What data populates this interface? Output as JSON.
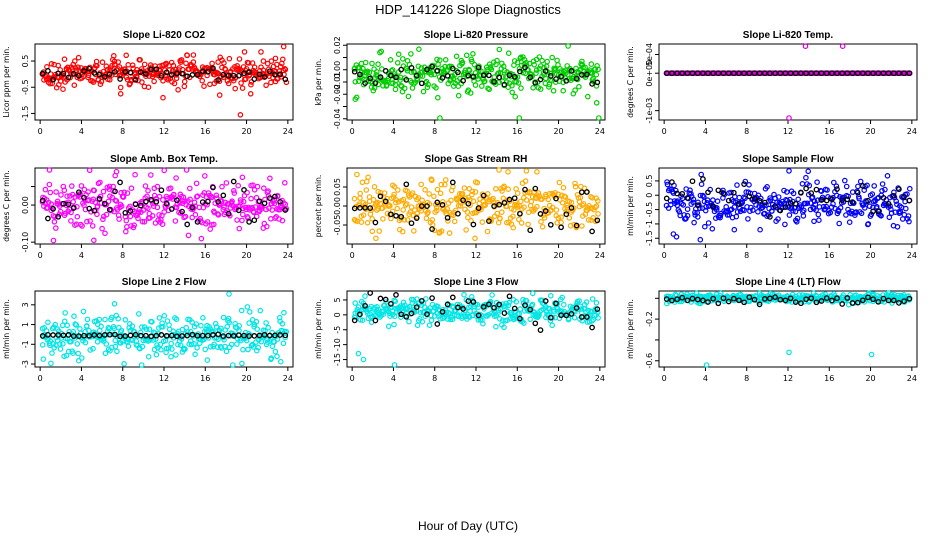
{
  "figure": {
    "title": "HDP_141226  Slope Diagnostics",
    "xlabel": "Hour of Day (UTC)"
  },
  "chart_data": [
    {
      "type": "scatter",
      "title": "Slope Li-820 CO2",
      "ylabel": "Licor ppm per min.",
      "color": "#ff0000",
      "yticks": [
        -1.5,
        -0.5,
        0.5
      ],
      "ytick_labels": [
        "-1.5",
        "-0.5",
        "0.5"
      ],
      "ylim": [
        -1.75,
        1.15
      ],
      "xlim": [
        -0.5,
        24.5
      ],
      "xticks": [
        0,
        4,
        8,
        12,
        16,
        20,
        24
      ],
      "center": 0.05,
      "spread": 0.25,
      "black_center": 0.02,
      "black_spread": 0.12,
      "outliers": [
        [
          7.8,
          -0.75
        ],
        [
          11.9,
          -0.9
        ],
        [
          17.4,
          -0.8
        ],
        [
          18.9,
          -0.55
        ],
        [
          19.4,
          -1.55
        ],
        [
          19.8,
          0.85
        ],
        [
          21.4,
          0.85
        ],
        [
          22.8,
          0.6
        ],
        [
          23.6,
          1.05
        ],
        [
          20.4,
          -0.75
        ]
      ]
    },
    {
      "type": "scatter",
      "title": "Slope Li-820 Pressure",
      "ylabel": "kPa per min.",
      "color": "#00cc00",
      "yticks": [
        -0.04,
        -0.03,
        -0.02,
        -0.01,
        0,
        0.01,
        0.02
      ],
      "ytick_labels": [
        "-0.04",
        "",
        "-0.02",
        "-0.01",
        "0.00",
        "",
        "0.02"
      ],
      "ylim": [
        -0.041,
        0.021
      ],
      "xlim": [
        -0.5,
        24.5
      ],
      "xticks": [
        0,
        4,
        8,
        12,
        16,
        20,
        24
      ],
      "center": -0.004,
      "spread": 0.007,
      "black_center": -0.005,
      "black_spread": 0.004,
      "outliers": [
        [
          0.3,
          -0.024
        ],
        [
          8.5,
          -0.04
        ],
        [
          11.7,
          0.013
        ],
        [
          15.8,
          -0.022
        ],
        [
          16.2,
          -0.04
        ],
        [
          23.9,
          -0.04
        ],
        [
          23.7,
          -0.027
        ]
      ]
    },
    {
      "type": "scatter",
      "title": "Slope Li-820 Temp.",
      "ylabel": "degrees C per min.",
      "color": "#dd00dd",
      "yticks": [
        -0.001,
        0,
        0.0005
      ],
      "ytick_labels": [
        "-1e-03",
        "0e+00",
        "5e-04"
      ],
      "ylim": [
        -0.00125,
        0.00078
      ],
      "xlim": [
        -0.5,
        24.5
      ],
      "xticks": [
        0,
        4,
        8,
        12,
        16,
        20,
        24
      ],
      "center": 0,
      "spread": 0,
      "black_center": 0,
      "black_spread": 0,
      "outliers": [
        [
          13.7,
          0.00072
        ],
        [
          17.3,
          0.00072
        ],
        [
          12.1,
          -0.0012
        ]
      ]
    },
    {
      "type": "scatter",
      "title": "Slope Amb. Box Temp.",
      "ylabel": "degrees C per min.",
      "color": "#ff00ff",
      "yticks": [
        -0.1,
        0,
        0.05
      ],
      "ytick_labels": [
        "-0.10",
        "0.00",
        ""
      ],
      "ylim": [
        -0.105,
        0.1
      ],
      "xlim": [
        -0.5,
        24.5
      ],
      "xticks": [
        0,
        4,
        8,
        12,
        16,
        20,
        24
      ],
      "center": 0,
      "spread": 0.035,
      "black_center": 0,
      "black_spread": 0.03,
      "outliers": [
        [
          5.2,
          -0.095
        ],
        [
          7.4,
          0.09
        ],
        [
          9.2,
          0.082
        ],
        [
          19.6,
          0.075
        ]
      ]
    },
    {
      "type": "scatter",
      "title": "Slope Gas Stream RH",
      "ylabel": "percent per min.",
      "color": "#ffaa00",
      "yticks": [
        -0.05,
        0,
        0.05
      ],
      "ytick_labels": [
        "-0.05",
        "0.00",
        "0.05"
      ],
      "ylim": [
        -0.1,
        0.1
      ],
      "xlim": [
        -0.5,
        24.5
      ],
      "xticks": [
        0,
        4,
        8,
        12,
        16,
        20,
        24
      ],
      "center": 0,
      "spread": 0.03,
      "black_center": 0,
      "black_spread": 0.03,
      "outliers": [
        [
          2.3,
          -0.085
        ],
        [
          11.9,
          -0.085
        ],
        [
          15.1,
          0.09
        ],
        [
          17.9,
          0.09
        ]
      ]
    },
    {
      "type": "scatter",
      "title": "Slope Sample Flow",
      "ylabel": "ml/min per min.",
      "color": "#0000ff",
      "yticks": [
        -1.5,
        -1,
        -0.5,
        0,
        0.5
      ],
      "ytick_labels": [
        "-1.5",
        "-1",
        "-0.5",
        "0",
        "0.5"
      ],
      "ylim": [
        -1.7,
        0.95
      ],
      "xlim": [
        -0.5,
        24.5
      ],
      "xticks": [
        0,
        4,
        8,
        12,
        16,
        20,
        24
      ],
      "center": -0.3,
      "spread": 0.35,
      "black_center": -0.1,
      "black_spread": 0.25,
      "outliers": [
        [
          0.9,
          -1.35
        ],
        [
          1.2,
          -1.45
        ],
        [
          3.5,
          -1.55
        ],
        [
          6.8,
          -1.2
        ],
        [
          12.1,
          0.85
        ]
      ]
    },
    {
      "type": "scatter",
      "title": "Slope Line 2 Flow",
      "ylabel": "ml/min per min.",
      "color": "#00e5e5",
      "yticks": [
        -3,
        -1,
        1,
        3
      ],
      "ytick_labels": [
        "-3",
        "-1",
        "1",
        "3"
      ],
      "ylim": [
        -3.3,
        4.4
      ],
      "xlim": [
        -0.5,
        24.5
      ],
      "xticks": [
        0,
        4,
        8,
        12,
        16,
        20,
        24
      ],
      "center": -0.2,
      "spread": 1.1,
      "black_center": -0.1,
      "black_spread": 0.05,
      "outliers": [
        [
          18.3,
          4.1
        ],
        [
          16.2,
          -2.6
        ],
        [
          0.3,
          -2.5
        ],
        [
          7.2,
          3.1
        ],
        [
          22.4,
          -2.4
        ]
      ]
    },
    {
      "type": "scatter",
      "title": "Slope Line 3 Flow",
      "ylabel": "ml/min per min.",
      "color": "#00e5e5",
      "yticks": [
        -15,
        -10,
        -5,
        0,
        5
      ],
      "ytick_labels": [
        "-15",
        "-10",
        "-5",
        "0",
        "5"
      ],
      "ylim": [
        -17.5,
        8
      ],
      "xlim": [
        -0.5,
        24.5
      ],
      "xticks": [
        0,
        4,
        8,
        12,
        16,
        20,
        24
      ],
      "center": 1.2,
      "spread": 2.0,
      "black_center": 1.0,
      "black_spread": 2.8,
      "outliers": [
        [
          0.6,
          -13
        ],
        [
          1.1,
          -15
        ],
        [
          4.1,
          -16.8
        ],
        [
          17.5,
          7.2
        ]
      ]
    },
    {
      "type": "scatter",
      "title": "Slope Line 4 (LT) Flow",
      "ylabel": "ml/min per min.",
      "color": "#00e5e5",
      "yticks": [
        -0.6,
        -0.4,
        -0.2,
        0
      ],
      "ytick_labels": [
        "-0.6",
        "",
        "-0.2",
        ""
      ],
      "ylim": [
        -0.66,
        0.07
      ],
      "xlim": [
        -0.5,
        24.5
      ],
      "xticks": [
        0,
        4,
        8,
        12,
        16,
        20,
        24
      ],
      "center": 0,
      "spread": 0.02,
      "black_center": -0.01,
      "black_spread": 0.02,
      "outliers": [
        [
          4.1,
          -0.65
        ],
        [
          12.1,
          -0.52
        ],
        [
          20.1,
          -0.54
        ]
      ]
    }
  ]
}
